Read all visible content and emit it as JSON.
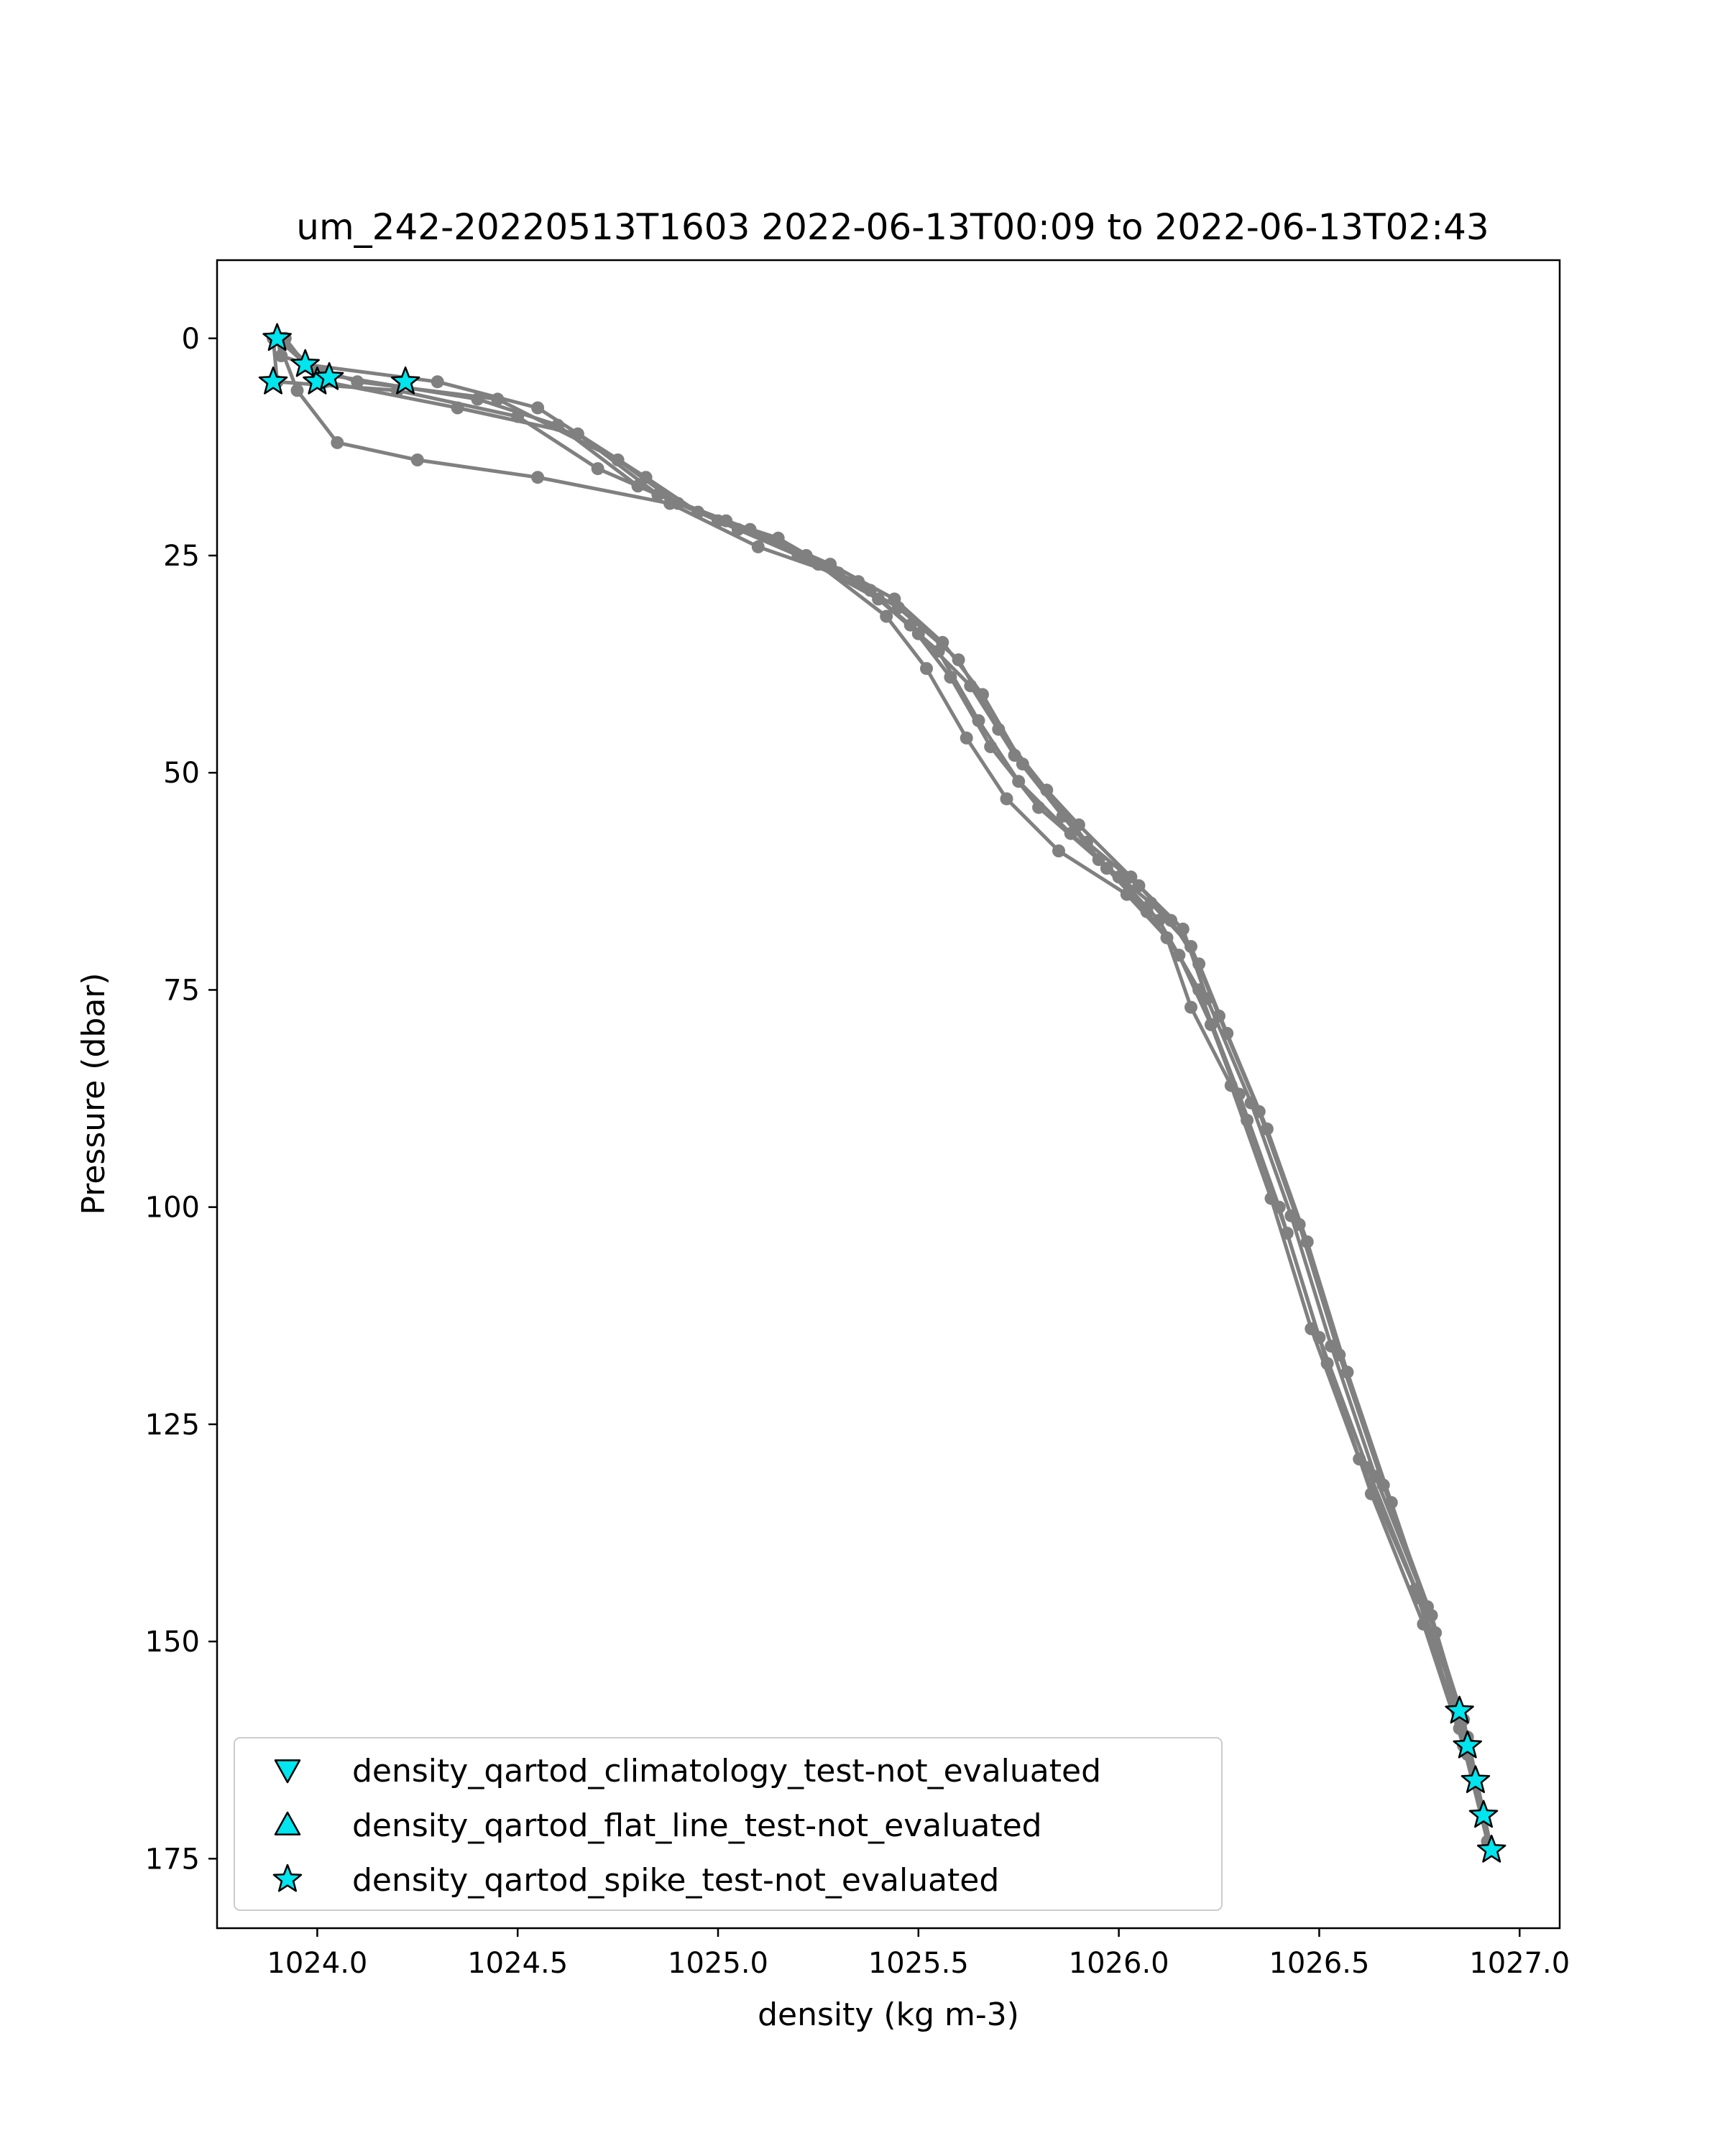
{
  "chart_data": {
    "type": "line",
    "title": "um_242-20220513T1603 2022-06-13T00:09 to 2022-06-13T02:43",
    "xlabel": "density (kg m-3)",
    "ylabel": "Pressure (dbar)",
    "xlim": [
      1023.75,
      1027.1
    ],
    "ylim": [
      183,
      -9
    ],
    "y_inverted": true,
    "grid": false,
    "legend_position": "lower-left",
    "xticks": [
      1024.0,
      1024.5,
      1025.0,
      1025.5,
      1026.0,
      1026.5,
      1027.0
    ],
    "xtick_labels": [
      "1024.0",
      "1024.5",
      "1025.0",
      "1025.5",
      "1026.0",
      "1026.5",
      "1027.0"
    ],
    "yticks": [
      0,
      25,
      50,
      75,
      100,
      125,
      150,
      175
    ],
    "ytick_labels": [
      "0",
      "25",
      "50",
      "75",
      "100",
      "125",
      "150",
      "175"
    ],
    "colors": {
      "profile": "#808080",
      "flag_marker": "#00e5ee",
      "marker_edge": "#000000"
    },
    "series": [
      {
        "x": [
          1023.9,
          1023.91,
          1024.1,
          1024.45,
          1024.75,
          1024.9,
          1025.05,
          1025.2,
          1025.4,
          1025.55,
          1025.65,
          1025.75,
          1025.88,
          1026.0,
          1026.1,
          1026.2,
          1026.3,
          1026.4,
          1026.5,
          1026.62,
          1026.75,
          1026.85,
          1026.93
        ],
        "y": [
          0,
          2,
          5,
          7,
          14,
          19,
          22,
          25,
          30,
          36,
          44,
          51,
          57,
          62,
          67,
          75,
          87,
          100,
          115,
          130,
          145,
          158,
          174
        ]
      },
      {
        "x": [
          1023.92,
          1023.97,
          1024.3,
          1024.55,
          1024.82,
          1024.95,
          1025.15,
          1025.3,
          1025.45,
          1025.6,
          1025.7,
          1025.82,
          1025.92,
          1026.05,
          1026.16,
          1026.22,
          1026.33,
          1026.43,
          1026.53,
          1026.64,
          1026.77,
          1026.86,
          1026.93
        ],
        "y": [
          0,
          3,
          5,
          8,
          16,
          20,
          23,
          27,
          31,
          37,
          45,
          52,
          58,
          63,
          68,
          76,
          88,
          101,
          116,
          131,
          146,
          159,
          174
        ]
      },
      {
        "x": [
          1023.89,
          1023.9,
          1024.2,
          1024.5,
          1024.7,
          1024.85,
          1025.0,
          1025.25,
          1025.42,
          1025.52,
          1025.62,
          1025.72,
          1025.85,
          1026.02,
          1026.12,
          1026.18,
          1026.28,
          1026.38,
          1026.48,
          1026.6,
          1026.74,
          1026.85,
          1026.92
        ],
        "y": [
          0,
          5,
          6,
          9,
          15,
          18,
          21,
          26,
          32,
          38,
          46,
          53,
          59,
          64,
          69,
          77,
          86,
          99,
          114,
          129,
          144,
          160,
          173
        ]
      },
      {
        "x": [
          1023.9,
          1023.95,
          1024.05,
          1024.25,
          1024.55,
          1024.88,
          1025.1,
          1025.35,
          1025.48,
          1025.58,
          1025.68,
          1025.8,
          1025.95,
          1026.08,
          1026.18,
          1026.25,
          1026.35,
          1026.45,
          1026.55,
          1026.66,
          1026.78,
          1026.87,
          1026.93
        ],
        "y": [
          0,
          6,
          12,
          14,
          16,
          19,
          24,
          28,
          33,
          39,
          47,
          54,
          60,
          65,
          70,
          78,
          89,
          102,
          117,
          132,
          147,
          161,
          174
        ]
      },
      {
        "x": [
          1023.91,
          1024.0,
          1024.4,
          1024.6,
          1024.8,
          1025.02,
          1025.22,
          1025.38,
          1025.5,
          1025.63,
          1025.74,
          1025.86,
          1025.97,
          1026.07,
          1026.15,
          1026.23,
          1026.32,
          1026.42,
          1026.52,
          1026.63,
          1026.76,
          1026.86,
          1026.92
        ],
        "y": [
          0,
          4,
          7,
          10,
          17,
          21,
          25,
          29,
          34,
          40,
          48,
          55,
          61,
          66,
          71,
          79,
          90,
          103,
          118,
          133,
          148,
          162,
          173
        ]
      },
      {
        "x": [
          1023.9,
          1024.02,
          1024.35,
          1024.65,
          1024.85,
          1025.08,
          1025.28,
          1025.44,
          1025.56,
          1025.66,
          1025.76,
          1025.9,
          1026.03,
          1026.13,
          1026.2,
          1026.27,
          1026.37,
          1026.47,
          1026.57,
          1026.68,
          1026.79,
          1026.87,
          1026.93
        ],
        "y": [
          0,
          5,
          8,
          11,
          18,
          22,
          26,
          30,
          35,
          41,
          49,
          56,
          62,
          67,
          72,
          80,
          91,
          104,
          119,
          134,
          149,
          163,
          174
        ]
      }
    ],
    "flagged_points": [
      {
        "flag": "spike_test",
        "x": 1023.9,
        "y": 0
      },
      {
        "flag": "spike_test",
        "x": 1023.89,
        "y": 5
      },
      {
        "flag": "spike_test",
        "x": 1023.97,
        "y": 3
      },
      {
        "flag": "spike_test",
        "x": 1024.0,
        "y": 5
      },
      {
        "flag": "spike_test",
        "x": 1024.03,
        "y": 4.5
      },
      {
        "flag": "spike_test",
        "x": 1024.22,
        "y": 5
      },
      {
        "flag": "spike_test",
        "x": 1026.85,
        "y": 158
      },
      {
        "flag": "spike_test",
        "x": 1026.87,
        "y": 162
      },
      {
        "flag": "spike_test",
        "x": 1026.89,
        "y": 166
      },
      {
        "flag": "spike_test",
        "x": 1026.91,
        "y": 170
      },
      {
        "flag": "spike_test",
        "x": 1026.93,
        "y": 174
      }
    ],
    "legend": [
      {
        "marker": "triangle-down",
        "label": "density_qartod_climatology_test-not_evaluated"
      },
      {
        "marker": "triangle-up",
        "label": "density_qartod_flat_line_test-not_evaluated"
      },
      {
        "marker": "star",
        "label": "density_qartod_spike_test-not_evaluated"
      }
    ]
  }
}
